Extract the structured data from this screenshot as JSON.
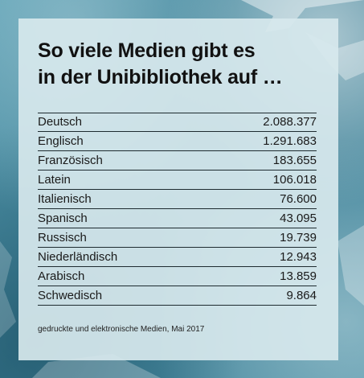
{
  "title": {
    "line1": "So viele Medien gibt es",
    "line2": "in der Unibibliothek auf …"
  },
  "rows": [
    {
      "language": "Deutsch",
      "value": "2.088.377"
    },
    {
      "language": "Englisch",
      "value": "1.291.683"
    },
    {
      "language": "Französisch",
      "value": "183.655"
    },
    {
      "language": "Latein",
      "value": "106.018"
    },
    {
      "language": "Italienisch",
      "value": "76.600"
    },
    {
      "language": "Spanisch",
      "value": "43.095"
    },
    {
      "language": "Russisch",
      "value": "19.739"
    },
    {
      "language": "Niederländisch",
      "value": "12.943"
    },
    {
      "language": "Arabisch",
      "value": "13.859"
    },
    {
      "language": "Schwedisch",
      "value": "9.864"
    }
  ],
  "footnote": "gedruckte und elektronische Medien, Mai 2017",
  "colors": {
    "background": "#4d93a8",
    "panel": "#d7e8ed",
    "text": "#111111"
  }
}
